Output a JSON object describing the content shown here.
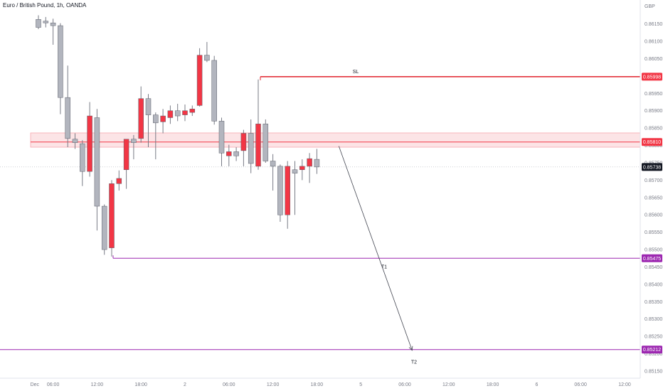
{
  "header": {
    "symbol_title": "Euro / British Pound, 1h, OANDA",
    "currency": "GBP"
  },
  "colors": {
    "up": "#f23645",
    "down": "#b2b5be",
    "wick": "#787b86",
    "zone_fill": "#fce4e6",
    "zone_border": "#f7a8b0",
    "sl_line": "#e0202a",
    "target_line": "#9c27b0",
    "price_label_sl": "#f23645",
    "price_label_target": "#9c27b0",
    "price_label_current": "#131722",
    "arrow": "#434651"
  },
  "chart_data": {
    "type": "candlestick",
    "price_axis": {
      "min": 0.8515,
      "max": 0.8618,
      "ticks": [
        0.8615,
        0.861,
        0.8605,
        0.86,
        0.8595,
        0.859,
        0.8585,
        0.858,
        0.8575,
        0.857,
        0.8565,
        0.856,
        0.8555,
        0.855,
        0.8545,
        0.854,
        0.8535,
        0.853,
        0.8525,
        0.852,
        0.8515
      ],
      "tick_labels": [
        "0.86150",
        "0.86100",
        "0.86050",
        "0.86000",
        "0.85950",
        "0.85900",
        "0.85850",
        "0.85800",
        "0.85750",
        "0.85700",
        "0.85650",
        "0.85600",
        "0.85550",
        "0.85500",
        "0.85450",
        "0.85400",
        "0.85350",
        "0.85300",
        "0.85250",
        "0.85200",
        "0.85150"
      ]
    },
    "time_axis": {
      "bar_min": -3,
      "bar_max": 74,
      "ticks": [
        {
          "bar": -0.5,
          "label": "Dec"
        },
        {
          "bar": 2,
          "label": "06:00"
        },
        {
          "bar": 8,
          "label": "12:00"
        },
        {
          "bar": 14,
          "label": "18:00"
        },
        {
          "bar": 20,
          "label": "2"
        },
        {
          "bar": 26,
          "label": "06:00"
        },
        {
          "bar": 32,
          "label": "12:00"
        },
        {
          "bar": 38,
          "label": "18:00"
        },
        {
          "bar": 44,
          "label": "5"
        },
        {
          "bar": 50,
          "label": "06:00"
        },
        {
          "bar": 56,
          "label": "12:00"
        },
        {
          "bar": 62,
          "label": "18:00"
        },
        {
          "bar": 68,
          "label": "6"
        },
        {
          "bar": 74,
          "label": "06:00"
        },
        {
          "bar": 80,
          "label": "12:00"
        }
      ]
    },
    "candles": [
      {
        "o": 0.86163,
        "h": 0.86175,
        "l": 0.86135,
        "c": 0.8614
      },
      {
        "o": 0.86158,
        "h": 0.8617,
        "l": 0.8614,
        "c": 0.86153
      },
      {
        "o": 0.86153,
        "h": 0.86165,
        "l": 0.8609,
        "c": 0.86145
      },
      {
        "o": 0.86145,
        "h": 0.86152,
        "l": 0.8589,
        "c": 0.85938
      },
      {
        "o": 0.85938,
        "h": 0.8603,
        "l": 0.85795,
        "c": 0.8582
      },
      {
        "o": 0.85818,
        "h": 0.85835,
        "l": 0.8579,
        "c": 0.85808
      },
      {
        "o": 0.85805,
        "h": 0.85815,
        "l": 0.85683,
        "c": 0.85725
      },
      {
        "o": 0.85725,
        "h": 0.85925,
        "l": 0.8571,
        "c": 0.85885
      },
      {
        "o": 0.8588,
        "h": 0.85905,
        "l": 0.85555,
        "c": 0.85625
      },
      {
        "o": 0.85625,
        "h": 0.8563,
        "l": 0.85485,
        "c": 0.855
      },
      {
        "o": 0.85505,
        "h": 0.857,
        "l": 0.8548,
        "c": 0.8569
      },
      {
        "o": 0.8569,
        "h": 0.85728,
        "l": 0.8567,
        "c": 0.85705
      },
      {
        "o": 0.8573,
        "h": 0.85818,
        "l": 0.85675,
        "c": 0.85818
      },
      {
        "o": 0.85818,
        "h": 0.8583,
        "l": 0.8576,
        "c": 0.85808
      },
      {
        "o": 0.8582,
        "h": 0.8597,
        "l": 0.85808,
        "c": 0.85935
      },
      {
        "o": 0.85935,
        "h": 0.85948,
        "l": 0.85795,
        "c": 0.85888
      },
      {
        "o": 0.85888,
        "h": 0.85895,
        "l": 0.8576,
        "c": 0.85865
      },
      {
        "o": 0.85868,
        "h": 0.85905,
        "l": 0.85835,
        "c": 0.85885
      },
      {
        "o": 0.8588,
        "h": 0.85915,
        "l": 0.85862,
        "c": 0.859
      },
      {
        "o": 0.859,
        "h": 0.8592,
        "l": 0.8587,
        "c": 0.85885
      },
      {
        "o": 0.85888,
        "h": 0.85918,
        "l": 0.8587,
        "c": 0.859
      },
      {
        "o": 0.85895,
        "h": 0.85915,
        "l": 0.85885,
        "c": 0.85905
      },
      {
        "o": 0.85915,
        "h": 0.8608,
        "l": 0.85912,
        "c": 0.8606
      },
      {
        "o": 0.8606,
        "h": 0.86098,
        "l": 0.8604,
        "c": 0.86045
      },
      {
        "o": 0.86045,
        "h": 0.86058,
        "l": 0.8586,
        "c": 0.8587
      },
      {
        "o": 0.8587,
        "h": 0.8588,
        "l": 0.8574,
        "c": 0.85778
      },
      {
        "o": 0.8577,
        "h": 0.85802,
        "l": 0.8574,
        "c": 0.85782
      },
      {
        "o": 0.85782,
        "h": 0.85795,
        "l": 0.85755,
        "c": 0.8577
      },
      {
        "o": 0.85785,
        "h": 0.85845,
        "l": 0.8574,
        "c": 0.85835
      },
      {
        "o": 0.85835,
        "h": 0.85875,
        "l": 0.8572,
        "c": 0.85748
      },
      {
        "o": 0.8574,
        "h": 0.8599,
        "l": 0.8573,
        "c": 0.85862
      },
      {
        "o": 0.85862,
        "h": 0.85875,
        "l": 0.8575,
        "c": 0.85755
      },
      {
        "o": 0.85755,
        "h": 0.85775,
        "l": 0.8567,
        "c": 0.8574
      },
      {
        "o": 0.8574,
        "h": 0.85745,
        "l": 0.8558,
        "c": 0.856
      },
      {
        "o": 0.856,
        "h": 0.85755,
        "l": 0.8556,
        "c": 0.8574
      },
      {
        "o": 0.8573,
        "h": 0.85755,
        "l": 0.856,
        "c": 0.8572
      },
      {
        "o": 0.8573,
        "h": 0.8576,
        "l": 0.857,
        "c": 0.8574
      },
      {
        "o": 0.8574,
        "h": 0.85778,
        "l": 0.85692,
        "c": 0.85762
      },
      {
        "o": 0.8576,
        "h": 0.8579,
        "l": 0.85718,
        "c": 0.85738
      }
    ],
    "levels": {
      "zone": {
        "top": 0.85836,
        "bottom": 0.85795,
        "line": 0.8581
      },
      "sl": {
        "price": 0.85998,
        "start_bar": 30,
        "label": "SL"
      },
      "t1": {
        "price": 0.85475,
        "start_bar": 10,
        "label": "T1"
      },
      "t2": {
        "price": 0.85212,
        "label": "T2"
      },
      "current": {
        "price": 0.85738
      }
    },
    "arrow": {
      "from_bar": 41,
      "from_price": 0.85798,
      "to_bar": 51,
      "to_price": 0.8521
    },
    "price_labels": [
      "0.85998",
      "0.85810",
      "0.85738",
      "0.85475",
      "0.85212"
    ]
  }
}
